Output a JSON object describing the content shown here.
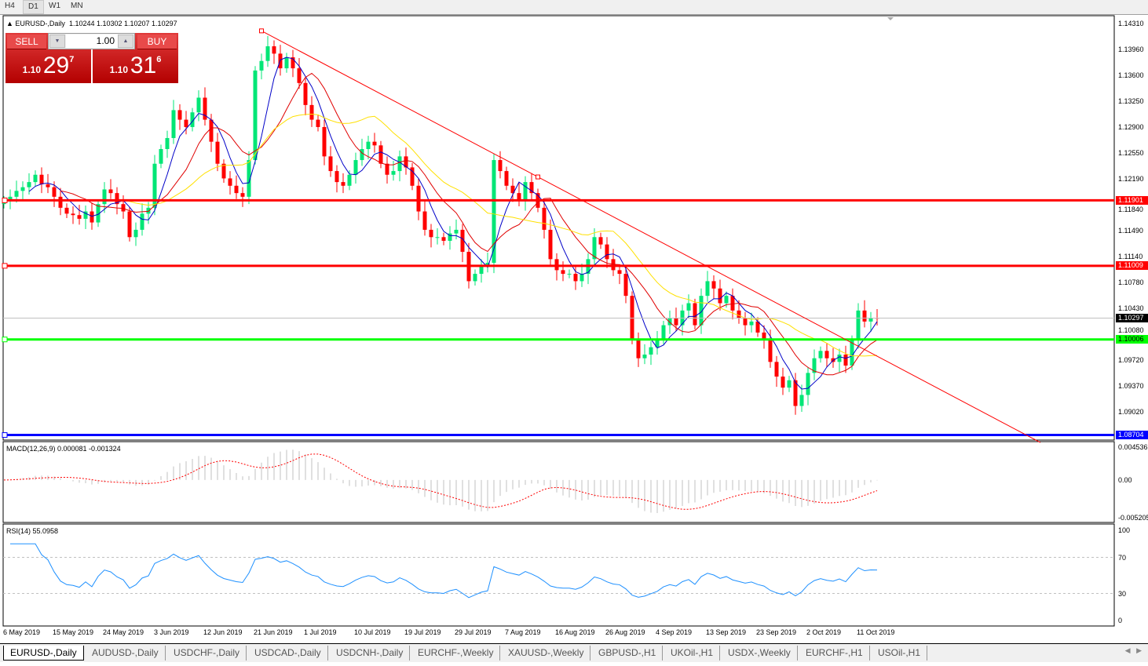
{
  "timeframes": [
    "H4",
    "D1",
    "W1",
    "MN"
  ],
  "active_timeframe": "D1",
  "chart": {
    "title": "EURUSD-,Daily",
    "ohlc": "1.10244 1.10302 1.10207 1.10297",
    "price_ticks": [
      "1.14310",
      "1.13960",
      "1.13600",
      "1.13250",
      "1.12900",
      "1.12550",
      "1.12190",
      "1.11840",
      "1.11490",
      "1.11140",
      "1.10780",
      "1.10430",
      "1.10080",
      "1.09720",
      "1.09370",
      "1.09020"
    ],
    "date_labels": [
      "6 May 2019",
      "15 May 2019",
      "24 May 2019",
      "3 Jun 2019",
      "12 Jun 2019",
      "21 Jun 2019",
      "1 Jul 2019",
      "10 Jul 2019",
      "19 Jul 2019",
      "29 Jul 2019",
      "7 Aug 2019",
      "16 Aug 2019",
      "26 Aug 2019",
      "4 Sep 2019",
      "13 Sep 2019",
      "23 Sep 2019",
      "2 Oct 2019",
      "11 Oct 2019"
    ],
    "levels": [
      {
        "price": 1.11901,
        "label": "1.11901",
        "color": "#ff0000"
      },
      {
        "price": 1.11009,
        "label": "1.11009",
        "color": "#ff0000"
      },
      {
        "price": 1.10006,
        "label": "1.10006",
        "color": "#00ff00"
      },
      {
        "price": 1.08704,
        "label": "1.08704",
        "color": "#0000ff"
      }
    ],
    "current_price": {
      "price": 1.10297,
      "label": "1.10297",
      "color": "#000000"
    },
    "trendline": {
      "color": "#ff0000",
      "anchors": [
        {
          "bar": 41,
          "price": 1.1421
        },
        {
          "bar": 85,
          "price": 1.1222
        }
      ]
    },
    "bull_color": "#00e676",
    "bear_color": "#ff0000",
    "ma": [
      {
        "period": 5,
        "color": "#0000c8"
      },
      {
        "period": 10,
        "color": "#e00000"
      },
      {
        "period": 20,
        "color": "#ffe000"
      }
    ]
  },
  "trade_panel": {
    "sell_label": "SELL",
    "buy_label": "BUY",
    "lot": "1.00",
    "sell_prefix": "1.10",
    "sell_main": "29",
    "sell_sup": "7",
    "buy_prefix": "1.10",
    "buy_main": "31",
    "buy_sup": "6"
  },
  "macd": {
    "label": "MACD(12,26,9) 0.000081 -0.001324",
    "ticks": [
      "0.004536",
      "0.00",
      "-0.005205"
    ],
    "range": [
      -0.005205,
      0.004536
    ]
  },
  "rsi": {
    "label": "RSI(14) 55.0958",
    "ticks": [
      "100",
      "70",
      "30",
      "0"
    ],
    "levels": [
      70,
      30
    ],
    "color": "#1e90ff"
  },
  "tabs": [
    "EURUSD-,Daily",
    "AUDUSD-,Daily",
    "USDCHF-,Daily",
    "USDCAD-,Daily",
    "USDCNH-,Daily",
    "EURCHF-,Weekly",
    "XAUUSD-,Weekly",
    "GBPUSD-,H1",
    "UKOil-,H1",
    "USDX-,Weekly",
    "EURCHF-,H1",
    "USOil-,H1"
  ],
  "active_tab": "EURUSD-,Daily",
  "chart_data": {
    "type": "candlestick",
    "title": "EURUSD-,Daily",
    "ylim": [
      1.08704,
      1.1431
    ],
    "closes": [
      1.119,
      1.1195,
      1.1203,
      1.1208,
      1.1215,
      1.1225,
      1.1212,
      1.1208,
      1.1195,
      1.118,
      1.1172,
      1.117,
      1.1165,
      1.1175,
      1.116,
      1.1185,
      1.1205,
      1.12,
      1.1185,
      1.1175,
      1.114,
      1.115,
      1.1172,
      1.118,
      1.124,
      1.126,
      1.1275,
      1.1313,
      1.13,
      1.129,
      1.131,
      1.133,
      1.13,
      1.127,
      1.124,
      1.122,
      1.121,
      1.12,
      1.1195,
      1.1245,
      1.1367,
      1.138,
      1.14,
      1.139,
      1.137,
      1.1385,
      1.137,
      1.135,
      1.132,
      1.13,
      1.129,
      1.125,
      1.123,
      1.1215,
      1.121,
      1.1225,
      1.1245,
      1.126,
      1.127,
      1.1265,
      1.124,
      1.1225,
      1.123,
      1.125,
      1.1235,
      1.121,
      1.1175,
      1.115,
      1.114,
      1.114,
      1.1135,
      1.1145,
      1.115,
      1.112,
      1.108,
      1.109,
      1.11,
      1.1105,
      1.1245,
      1.123,
      1.121,
      1.12,
      1.119,
      1.1215,
      1.12,
      1.118,
      1.115,
      1.111,
      1.1095,
      1.109,
      1.109,
      1.108,
      1.109,
      1.111,
      1.114,
      1.113,
      1.111,
      1.1095,
      1.109,
      1.106,
      1.1,
      1.0975,
      1.098,
      1.099,
      1.1,
      1.102,
      1.103,
      1.102,
      1.104,
      1.105,
      1.102,
      1.106,
      1.108,
      1.107,
      1.105,
      1.106,
      1.104,
      1.103,
      1.102,
      1.1025,
      1.101,
      1.1,
      1.097,
      1.095,
      1.0935,
      1.0945,
      1.091,
      1.0925,
      1.0955,
      1.0975,
      1.0985,
      1.0975,
      1.097,
      1.098,
      1.0965,
      1.1,
      1.104,
      1.1025,
      1.103,
      1.10297
    ]
  }
}
